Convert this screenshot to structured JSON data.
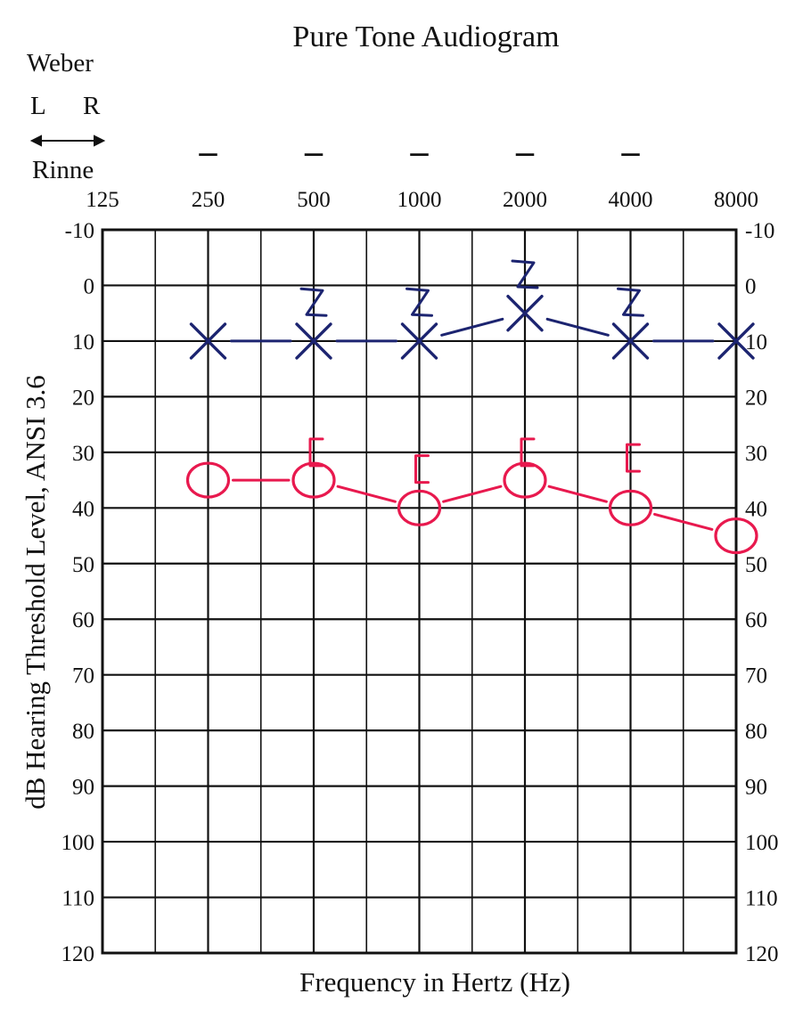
{
  "chart_data": {
    "type": "line",
    "title": "Pure Tone Audiogram",
    "xlabel": "Frequency in Hertz (Hz)",
    "ylabel": "dB Hearing Threshold Level, ANSI 3.6",
    "x_scale": "log2",
    "x_ticks": [
      "125",
      "250",
      "500",
      "1000",
      "2000",
      "4000",
      "8000"
    ],
    "y_ticks": [
      "-10",
      "0",
      "10",
      "20",
      "30",
      "40",
      "50",
      "60",
      "70",
      "80",
      "90",
      "100",
      "110",
      "120"
    ],
    "ylim": [
      -10,
      120
    ],
    "y_inverted": true,
    "grid": true,
    "weber": {
      "label": "Weber",
      "left_label": "L",
      "right_label": "R",
      "rinne_label": "Rinne",
      "marks": [
        {
          "x": 250,
          "symbol": "–"
        },
        {
          "x": 500,
          "symbol": "–"
        },
        {
          "x": 1000,
          "symbol": "–"
        },
        {
          "x": 2000,
          "symbol": "–"
        },
        {
          "x": 4000,
          "symbol": "–"
        }
      ]
    },
    "series": [
      {
        "marker": "X",
        "color": "#1c2470",
        "x": [
          250,
          500,
          1000,
          2000,
          4000,
          8000
        ],
        "y": [
          10,
          10,
          10,
          5,
          10,
          10
        ]
      },
      {
        "marker": "bone-left",
        "color": "#1c2470",
        "x": [
          500,
          1000,
          2000,
          4000
        ],
        "y": [
          3,
          3,
          -2,
          3
        ]
      },
      {
        "marker": "O",
        "color": "#e8194e",
        "x": [
          250,
          500,
          1000,
          2000,
          4000,
          8000
        ],
        "y": [
          35,
          35,
          40,
          35,
          40,
          45
        ]
      },
      {
        "marker": "bone-right",
        "color": "#e8194e",
        "x": [
          500,
          1000,
          2000,
          4000
        ],
        "y": [
          30,
          33,
          30,
          31
        ]
      }
    ]
  }
}
